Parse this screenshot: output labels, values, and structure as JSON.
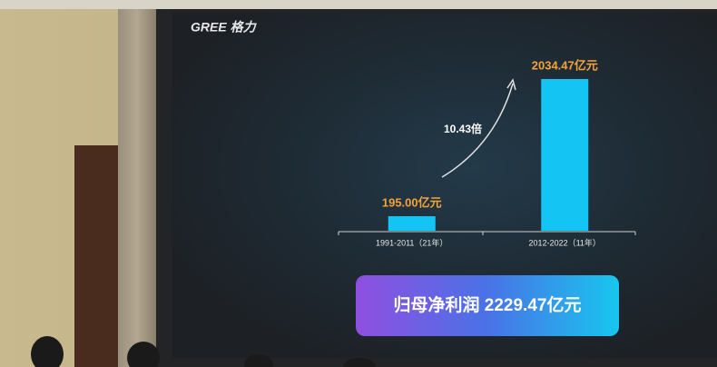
{
  "logo": "GREE 格力",
  "chart_data": {
    "type": "bar",
    "categories": [
      "1991-2011（21年）",
      "2012-2022（11年）"
    ],
    "values": [
      195,
      2034.47
    ],
    "value_labels": [
      "195.00亿元",
      "2034.47亿元"
    ],
    "color": "#14c4f2",
    "annotation": "10.43倍",
    "summary": "归母净利润 2229.47亿元"
  }
}
